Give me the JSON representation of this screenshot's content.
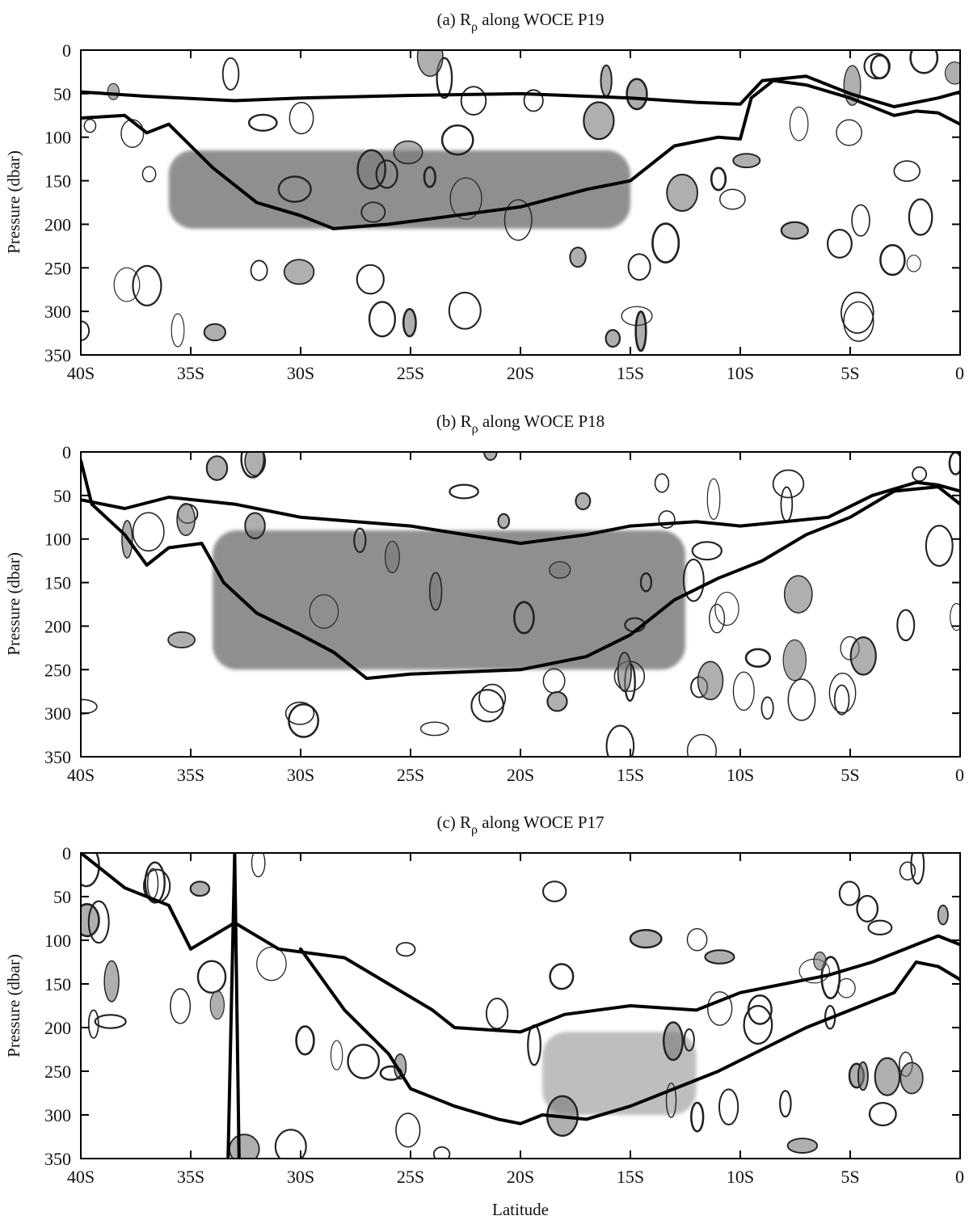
{
  "figure": {
    "xlabel": "Latitude",
    "ylabel": "Pressure (dbar)"
  },
  "chart_data": [
    {
      "type": "heatmap",
      "panel": "a",
      "title_prefix": "(a) R",
      "title_sub": "ρ",
      "title_suffix": " along WOCE P19",
      "xlabel": "",
      "ylabel": "Pressure (dbar)",
      "xlim": [
        -40,
        0
      ],
      "ylim": [
        350,
        0
      ],
      "xticks": [
        -40,
        -35,
        -30,
        -25,
        -20,
        -15,
        -10,
        -5,
        0
      ],
      "xtick_labels": [
        "40S",
        "35S",
        "30S",
        "25S",
        "20S",
        "15S",
        "10S",
        "5S",
        "0"
      ],
      "yticks": [
        0,
        50,
        100,
        150,
        200,
        250,
        300,
        350
      ],
      "ytick_labels": [
        "0",
        "50",
        "100",
        "150",
        "200",
        "250",
        "300",
        "350"
      ],
      "thick_lines": [
        {
          "lat": [
            -40,
            -37,
            -33,
            -30,
            -25,
            -20,
            -15,
            -12,
            -10,
            -9,
            -7,
            -5,
            -3,
            -1,
            0
          ],
          "p": [
            48,
            53,
            58,
            55,
            52,
            50,
            55,
            60,
            62,
            35,
            30,
            50,
            65,
            55,
            48
          ]
        },
        {
          "lat": [
            -40,
            -38,
            -37,
            -36,
            -34,
            -32,
            -30,
            -28.5,
            -26,
            -23,
            -20,
            -17,
            -15,
            -13,
            -11,
            -10,
            -9.5,
            -8.5,
            -7,
            -5,
            -3,
            -2,
            -1,
            0
          ],
          "p": [
            78,
            75,
            95,
            85,
            135,
            175,
            190,
            205,
            200,
            190,
            180,
            160,
            150,
            110,
            100,
            102,
            55,
            35,
            40,
            55,
            75,
            70,
            72,
            85
          ]
        }
      ],
      "shaded_core": {
        "lat_range": [
          -36,
          -15
        ],
        "p_range": [
          115,
          205
        ],
        "level": "dark"
      }
    },
    {
      "type": "heatmap",
      "panel": "b",
      "title_prefix": "(b) R",
      "title_sub": "ρ",
      "title_suffix": " along WOCE P18",
      "xlabel": "",
      "ylabel": "Pressure (dbar)",
      "xlim": [
        -40,
        0
      ],
      "ylim": [
        350,
        0
      ],
      "xticks": [
        -40,
        -35,
        -30,
        -25,
        -20,
        -15,
        -10,
        -5,
        0
      ],
      "xtick_labels": [
        "40S",
        "35S",
        "30S",
        "25S",
        "20S",
        "15S",
        "10S",
        "5S",
        "0"
      ],
      "yticks": [
        0,
        50,
        100,
        150,
        200,
        250,
        300,
        350
      ],
      "ytick_labels": [
        "0",
        "50",
        "100",
        "150",
        "200",
        "250",
        "300",
        "350"
      ],
      "thick_lines": [
        {
          "lat": [
            -40,
            -38,
            -36,
            -33,
            -30,
            -25,
            -20,
            -17,
            -15,
            -12,
            -10,
            -8,
            -6,
            -4,
            -2,
            -1,
            0
          ],
          "p": [
            55,
            65,
            52,
            60,
            75,
            85,
            105,
            95,
            85,
            80,
            85,
            80,
            75,
            50,
            35,
            38,
            45
          ]
        },
        {
          "lat": [
            -40,
            -39.5,
            -38,
            -37,
            -36,
            -34.5,
            -33.5,
            -32,
            -30,
            -28.5,
            -27,
            -25,
            -20,
            -17,
            -15,
            -13,
            -11,
            -9,
            -7,
            -5,
            -3,
            -1,
            0
          ],
          "p": [
            10,
            60,
            95,
            130,
            110,
            105,
            150,
            185,
            210,
            230,
            260,
            255,
            250,
            235,
            210,
            170,
            145,
            125,
            95,
            75,
            45,
            40,
            60
          ]
        }
      ],
      "shaded_core": {
        "lat_range": [
          -34,
          -12.5
        ],
        "p_range": [
          90,
          250
        ],
        "level": "dark"
      }
    },
    {
      "type": "heatmap",
      "panel": "c",
      "title_prefix": "(c) R",
      "title_sub": "ρ",
      "title_suffix": " along WOCE P17",
      "xlabel": "Latitude",
      "ylabel": "Pressure (dbar)",
      "xlim": [
        -40,
        0
      ],
      "ylim": [
        350,
        0
      ],
      "xticks": [
        -40,
        -35,
        -30,
        -25,
        -20,
        -15,
        -10,
        -5,
        0
      ],
      "xtick_labels": [
        "40S",
        "35S",
        "30S",
        "25S",
        "20S",
        "15S",
        "10S",
        "5S",
        "0"
      ],
      "yticks": [
        0,
        50,
        100,
        150,
        200,
        250,
        300,
        350
      ],
      "ytick_labels": [
        "0",
        "50",
        "100",
        "150",
        "200",
        "250",
        "300",
        "350"
      ],
      "thick_lines": [
        {
          "lat": [
            -40,
            -38,
            -36,
            -35,
            -33,
            -31,
            -28,
            -26,
            -24,
            -23,
            -20,
            -18,
            -15,
            -12,
            -10,
            -8,
            -6,
            -4,
            -2,
            -1,
            0
          ],
          "p": [
            0,
            40,
            60,
            110,
            80,
            110,
            120,
            150,
            180,
            200,
            205,
            185,
            175,
            180,
            160,
            150,
            140,
            125,
            105,
            95,
            105
          ]
        },
        {
          "lat": [
            -33.3,
            -33,
            -32.8
          ],
          "p": [
            350,
            0,
            350
          ]
        },
        {
          "lat": [
            -30,
            -28,
            -26,
            -25,
            -23,
            -21,
            -20,
            -19,
            -17,
            -15,
            -13,
            -11,
            -9,
            -7,
            -5,
            -3,
            -2,
            -1,
            0
          ],
          "p": [
            110,
            180,
            230,
            270,
            290,
            305,
            310,
            300,
            305,
            290,
            270,
            250,
            225,
            200,
            180,
            160,
            125,
            130,
            145
          ]
        }
      ],
      "shaded_core": {
        "lat_range": [
          -19,
          -12
        ],
        "p_range": [
          205,
          300
        ],
        "level": "light"
      }
    }
  ]
}
